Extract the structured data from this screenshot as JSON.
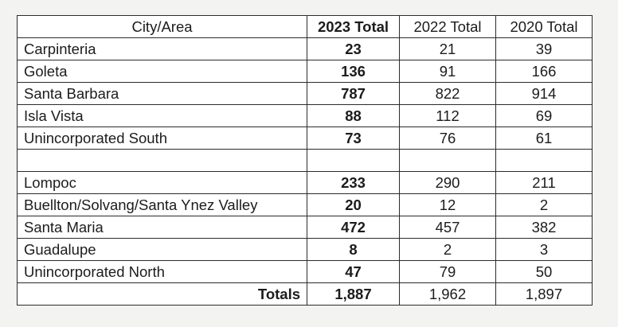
{
  "headers": {
    "city": "City/Area",
    "y2023": "2023 Total",
    "y2022": "2022 Total",
    "y2020": "2020 Total"
  },
  "south_rows": [
    {
      "city": "Carpinteria",
      "y2023": "23",
      "y2022": "21",
      "y2020": "39"
    },
    {
      "city": "Goleta",
      "y2023": "136",
      "y2022": "91",
      "y2020": "166"
    },
    {
      "city": "Santa Barbara",
      "y2023": "787",
      "y2022": "822",
      "y2020": "914"
    },
    {
      "city": "Isla Vista",
      "y2023": "88",
      "y2022": "112",
      "y2020": "69"
    },
    {
      "city": "Unincorporated South",
      "y2023": "73",
      "y2022": "76",
      "y2020": "61"
    }
  ],
  "north_rows": [
    {
      "city": "Lompoc",
      "y2023": "233",
      "y2022": "290",
      "y2020": "211"
    },
    {
      "city": "Buellton/Solvang/Santa Ynez Valley",
      "y2023": "20",
      "y2022": "12",
      "y2020": "2"
    },
    {
      "city": "Santa Maria",
      "y2023": "472",
      "y2022": "457",
      "y2020": "382"
    },
    {
      "city": "Guadalupe",
      "y2023": "8",
      "y2022": "2",
      "y2020": "3"
    },
    {
      "city": "Unincorporated North",
      "y2023": "47",
      "y2022": "79",
      "y2020": "50"
    }
  ],
  "totals": {
    "label": "Totals",
    "y2023": "1,887",
    "y2022": "1,962",
    "y2020": "1,897"
  }
}
